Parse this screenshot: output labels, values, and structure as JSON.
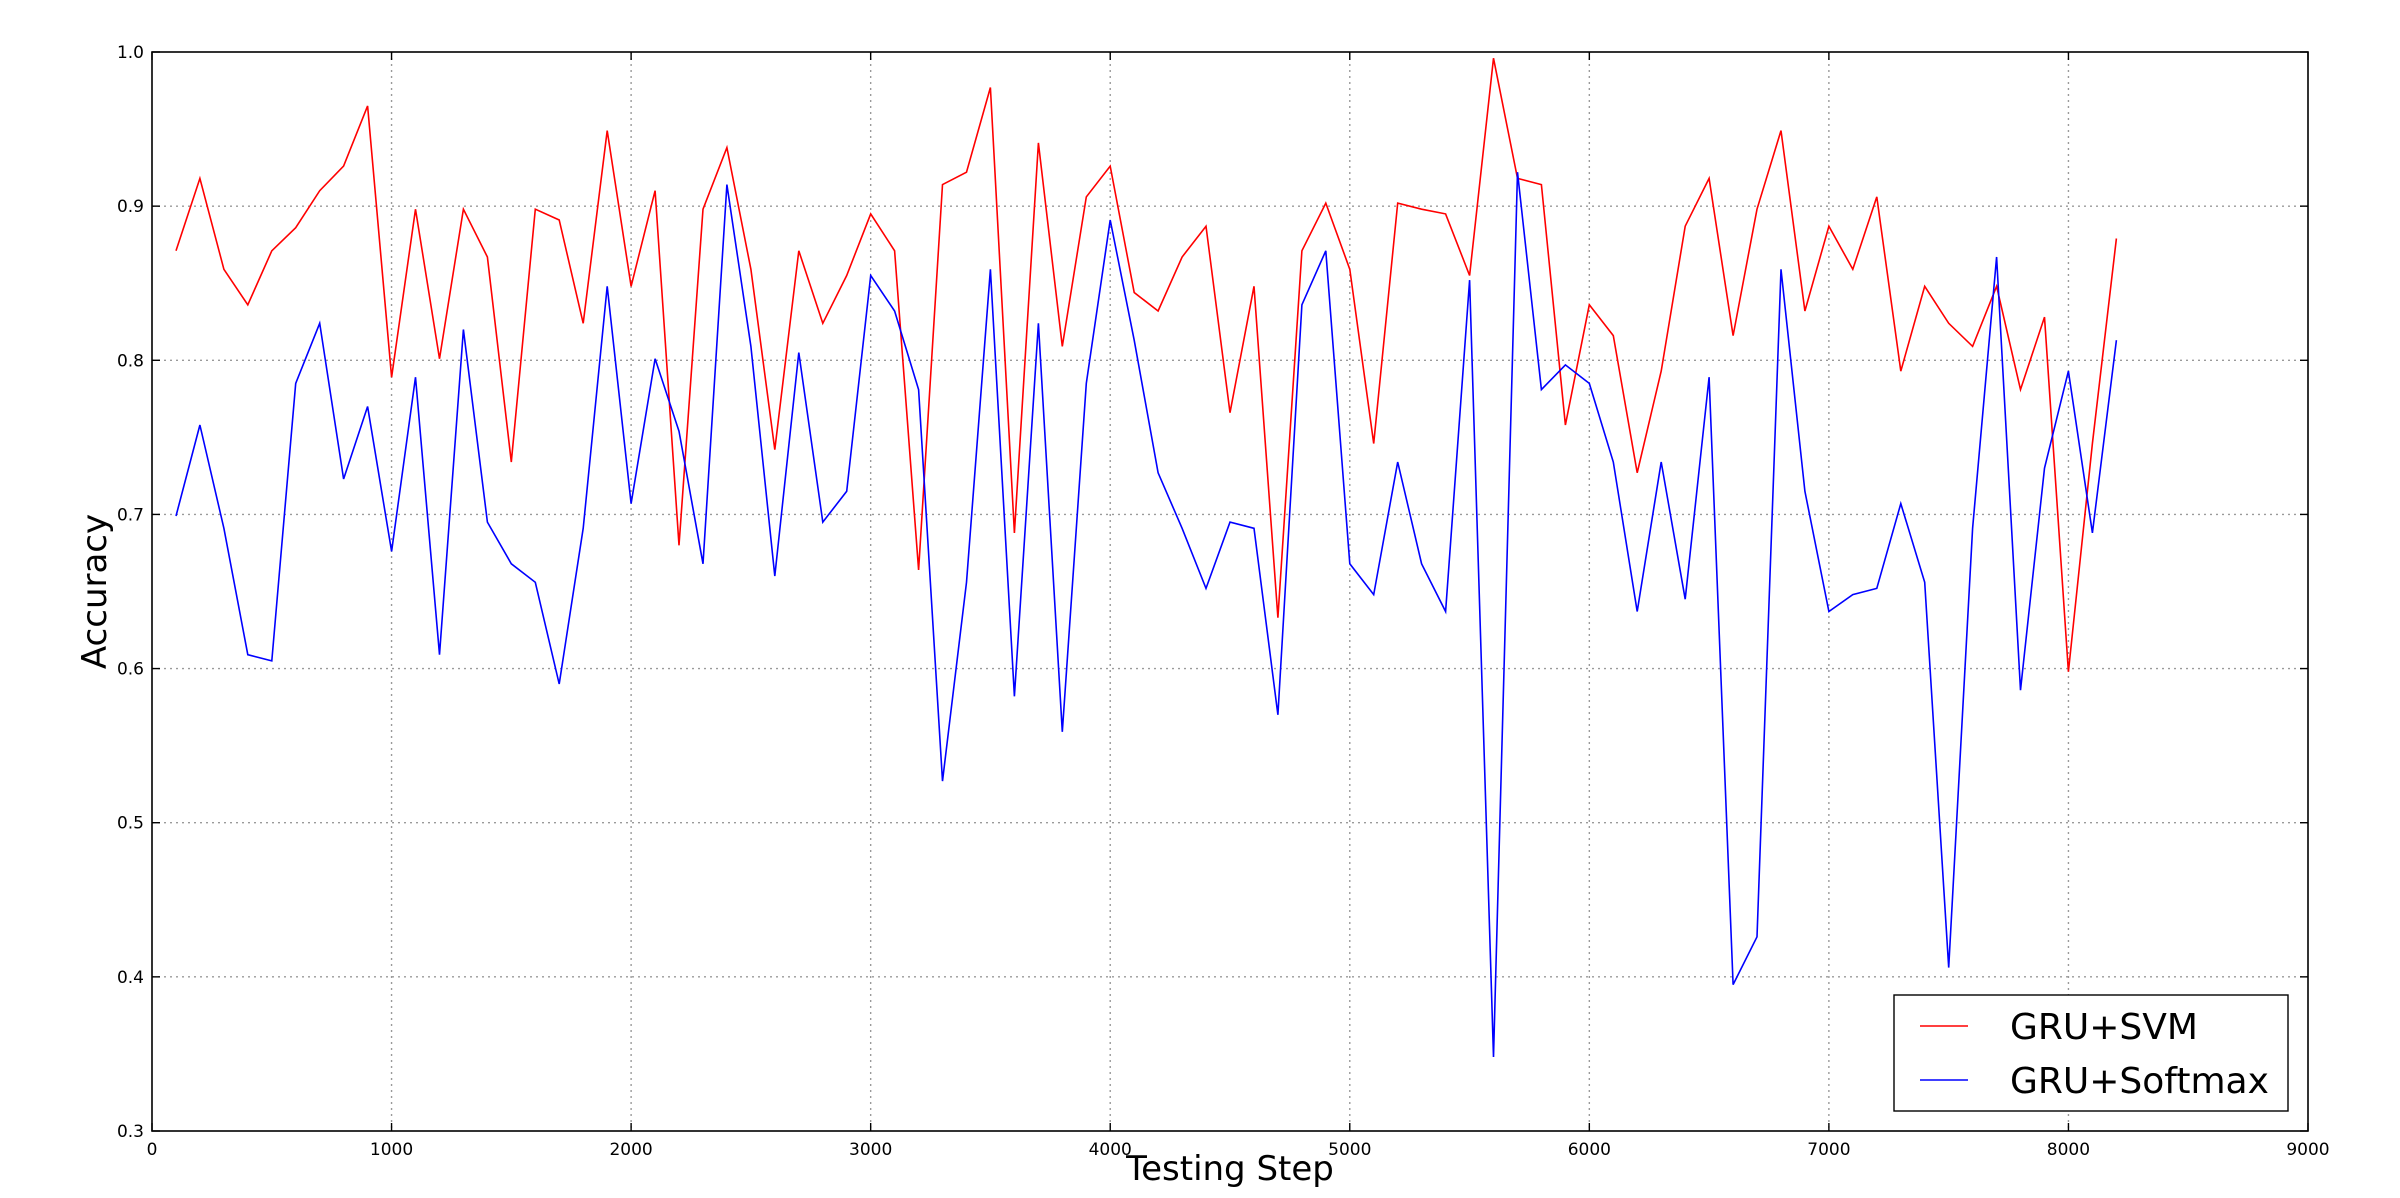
{
  "chart_data": {
    "type": "line",
    "title": "",
    "xlabel": "Testing Step",
    "ylabel": "Accuracy",
    "xlim": [
      0,
      9000
    ],
    "ylim": [
      0.3,
      1.0
    ],
    "xticks": [
      0,
      1000,
      2000,
      3000,
      4000,
      5000,
      6000,
      7000,
      8000,
      9000
    ],
    "xtick_labels": [
      "0",
      "1000",
      "2000",
      "3000",
      "4000",
      "5000",
      "6000",
      "7000",
      "8000",
      "9000"
    ],
    "yticks": [
      0.3,
      0.4,
      0.5,
      0.6,
      0.7,
      0.8,
      0.9,
      1.0
    ],
    "ytick_labels": [
      "0.3",
      "0.4",
      "0.5",
      "0.6",
      "0.7",
      "0.8",
      "0.9",
      "1.0"
    ],
    "grid": true,
    "legend_position": "bottom-right",
    "x": [
      100,
      200,
      300,
      400,
      500,
      600,
      700,
      800,
      900,
      1000,
      1100,
      1200,
      1300,
      1400,
      1500,
      1600,
      1700,
      1800,
      1900,
      2000,
      2100,
      2200,
      2300,
      2400,
      2500,
      2600,
      2700,
      2800,
      2900,
      3000,
      3100,
      3200,
      3300,
      3400,
      3500,
      3600,
      3700,
      3800,
      3900,
      4000,
      4100,
      4200,
      4300,
      4400,
      4500,
      4600,
      4700,
      4800,
      4900,
      5000,
      5100,
      5200,
      5300,
      5400,
      5500,
      5600,
      5700,
      5800,
      5900,
      6000,
      6100,
      6200,
      6300,
      6400,
      6500,
      6600,
      6700,
      6800,
      6900,
      7000,
      7100,
      7200,
      7300,
      7400,
      7500,
      7600,
      7700,
      7800,
      7900,
      8000,
      8100,
      8200
    ],
    "series": [
      {
        "name": "GRU+SVM",
        "color": "#ff0000",
        "values": [
          0.871,
          0.918,
          0.859,
          0.836,
          0.871,
          0.886,
          0.91,
          0.926,
          0.965,
          0.789,
          0.898,
          0.801,
          0.898,
          0.867,
          0.734,
          0.898,
          0.891,
          0.824,
          0.949,
          0.848,
          0.91,
          0.68,
          0.898,
          0.938,
          0.859,
          0.742,
          0.871,
          0.824,
          0.855,
          0.895,
          0.871,
          0.664,
          0.914,
          0.922,
          0.977,
          0.688,
          0.941,
          0.809,
          0.906,
          0.926,
          0.844,
          0.832,
          0.867,
          0.887,
          0.766,
          0.848,
          0.633,
          0.871,
          0.902,
          0.859,
          0.746,
          0.902,
          0.898,
          0.895,
          0.855,
          0.996,
          0.918,
          0.914,
          0.758,
          0.836,
          0.816,
          0.727,
          0.793,
          0.887,
          0.918,
          0.816,
          0.898,
          0.949,
          0.832,
          0.887,
          0.859,
          0.906,
          0.793,
          0.848,
          0.824,
          0.809,
          0.848,
          0.781,
          0.828,
          0.598,
          0.746,
          0.879
        ]
      },
      {
        "name": "GRU+Softmax",
        "color": "#0000ff",
        "values": [
          0.699,
          0.758,
          0.691,
          0.609,
          0.605,
          0.785,
          0.824,
          0.723,
          0.77,
          0.676,
          0.789,
          0.609,
          0.82,
          0.695,
          0.668,
          0.656,
          0.59,
          0.691,
          0.848,
          0.707,
          0.801,
          0.754,
          0.668,
          0.914,
          0.809,
          0.66,
          0.805,
          0.695,
          0.715,
          0.855,
          0.832,
          0.781,
          0.527,
          0.656,
          0.859,
          0.582,
          0.824,
          0.559,
          0.785,
          0.891,
          0.813,
          0.727,
          0.691,
          0.652,
          0.695,
          0.691,
          0.57,
          0.836,
          0.871,
          0.668,
          0.648,
          0.734,
          0.668,
          0.637,
          0.852,
          0.348,
          0.922,
          0.781,
          0.797,
          0.785,
          0.734,
          0.637,
          0.734,
          0.645,
          0.789,
          0.395,
          0.426,
          0.859,
          0.715,
          0.637,
          0.648,
          0.652,
          0.707,
          0.656,
          0.406,
          0.691,
          0.867,
          0.586,
          0.73,
          0.793,
          0.688,
          0.813
        ]
      }
    ]
  }
}
